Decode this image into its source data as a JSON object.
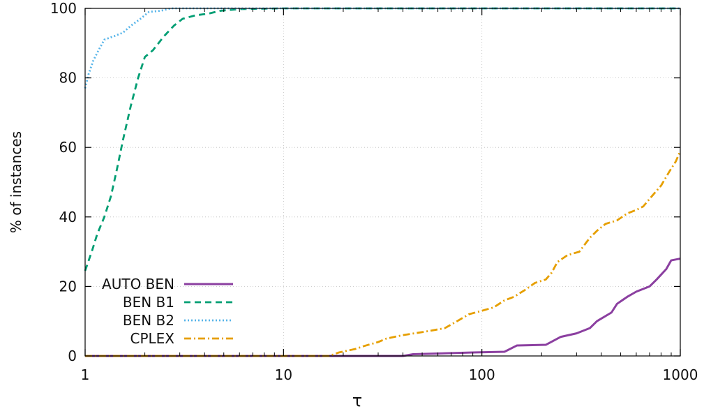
{
  "chart_data": {
    "type": "line",
    "title": "",
    "xlabel": "τ",
    "ylabel": "% of instances",
    "xscale": "log",
    "xlim": [
      1,
      1000
    ],
    "ylim": [
      0,
      100
    ],
    "xticks": [
      1,
      10,
      100,
      1000
    ],
    "xtick_labels": [
      "1",
      "10",
      "100",
      "1000"
    ],
    "yticks": [
      0,
      20,
      40,
      60,
      80,
      100
    ],
    "ytick_labels": [
      "0",
      "20",
      "40",
      "60",
      "80",
      "100"
    ],
    "grid": true,
    "legend_position": "bottom-left",
    "series": [
      {
        "name": "AUTO BEN",
        "color": "#8b3fa0",
        "dash": "solid",
        "points": [
          [
            1,
            0
          ],
          [
            40,
            0
          ],
          [
            45,
            0.5
          ],
          [
            90,
            1
          ],
          [
            130,
            1.2
          ],
          [
            150,
            3
          ],
          [
            210,
            3.2
          ],
          [
            250,
            5.5
          ],
          [
            300,
            6.5
          ],
          [
            350,
            8
          ],
          [
            380,
            10
          ],
          [
            450,
            12.5
          ],
          [
            480,
            15
          ],
          [
            540,
            17
          ],
          [
            600,
            18.5
          ],
          [
            700,
            20
          ],
          [
            760,
            22
          ],
          [
            850,
            25
          ],
          [
            900,
            27.5
          ],
          [
            1000,
            28
          ]
        ]
      },
      {
        "name": "BEN B1",
        "color": "#009e73",
        "dash": "dashed",
        "points": [
          [
            1,
            24.5
          ],
          [
            1.08,
            30
          ],
          [
            1.15,
            35
          ],
          [
            1.25,
            40
          ],
          [
            1.35,
            46
          ],
          [
            1.45,
            54
          ],
          [
            1.55,
            62
          ],
          [
            1.7,
            72
          ],
          [
            1.85,
            80
          ],
          [
            2,
            86
          ],
          [
            2.2,
            88
          ],
          [
            2.5,
            92
          ],
          [
            2.8,
            95
          ],
          [
            3.1,
            97
          ],
          [
            3.6,
            98
          ],
          [
            4.2,
            98.5
          ],
          [
            4.8,
            99.3
          ],
          [
            6,
            99.8
          ],
          [
            10,
            100
          ],
          [
            1000,
            100
          ]
        ]
      },
      {
        "name": "BEN B2",
        "color": "#56b4e9",
        "dash": "dotted",
        "points": [
          [
            1,
            77
          ],
          [
            1.04,
            81
          ],
          [
            1.1,
            85
          ],
          [
            1.17,
            88
          ],
          [
            1.25,
            91
          ],
          [
            1.4,
            92
          ],
          [
            1.55,
            93
          ],
          [
            1.7,
            95
          ],
          [
            1.9,
            97
          ],
          [
            2.1,
            99
          ],
          [
            2.4,
            99.3
          ],
          [
            2.7,
            100
          ],
          [
            1000,
            100
          ]
        ]
      },
      {
        "name": "CPLEX",
        "color": "#e69f00",
        "dash": "dash-dot",
        "points": [
          [
            1,
            0
          ],
          [
            17,
            0
          ],
          [
            19,
            1
          ],
          [
            23,
            2
          ],
          [
            26,
            3
          ],
          [
            30,
            4
          ],
          [
            33,
            5
          ],
          [
            40,
            6
          ],
          [
            52,
            7
          ],
          [
            65,
            8
          ],
          [
            75,
            10
          ],
          [
            86,
            12
          ],
          [
            100,
            13
          ],
          [
            115,
            14
          ],
          [
            130,
            16
          ],
          [
            145,
            17
          ],
          [
            165,
            19
          ],
          [
            185,
            21
          ],
          [
            210,
            22
          ],
          [
            225,
            24
          ],
          [
            240,
            27
          ],
          [
            270,
            29
          ],
          [
            310,
            30
          ],
          [
            350,
            34
          ],
          [
            380,
            36
          ],
          [
            420,
            38
          ],
          [
            480,
            39
          ],
          [
            540,
            41
          ],
          [
            600,
            42
          ],
          [
            650,
            43
          ],
          [
            720,
            46
          ],
          [
            800,
            49
          ],
          [
            880,
            53
          ],
          [
            950,
            56
          ],
          [
            1000,
            59
          ]
        ]
      }
    ]
  }
}
